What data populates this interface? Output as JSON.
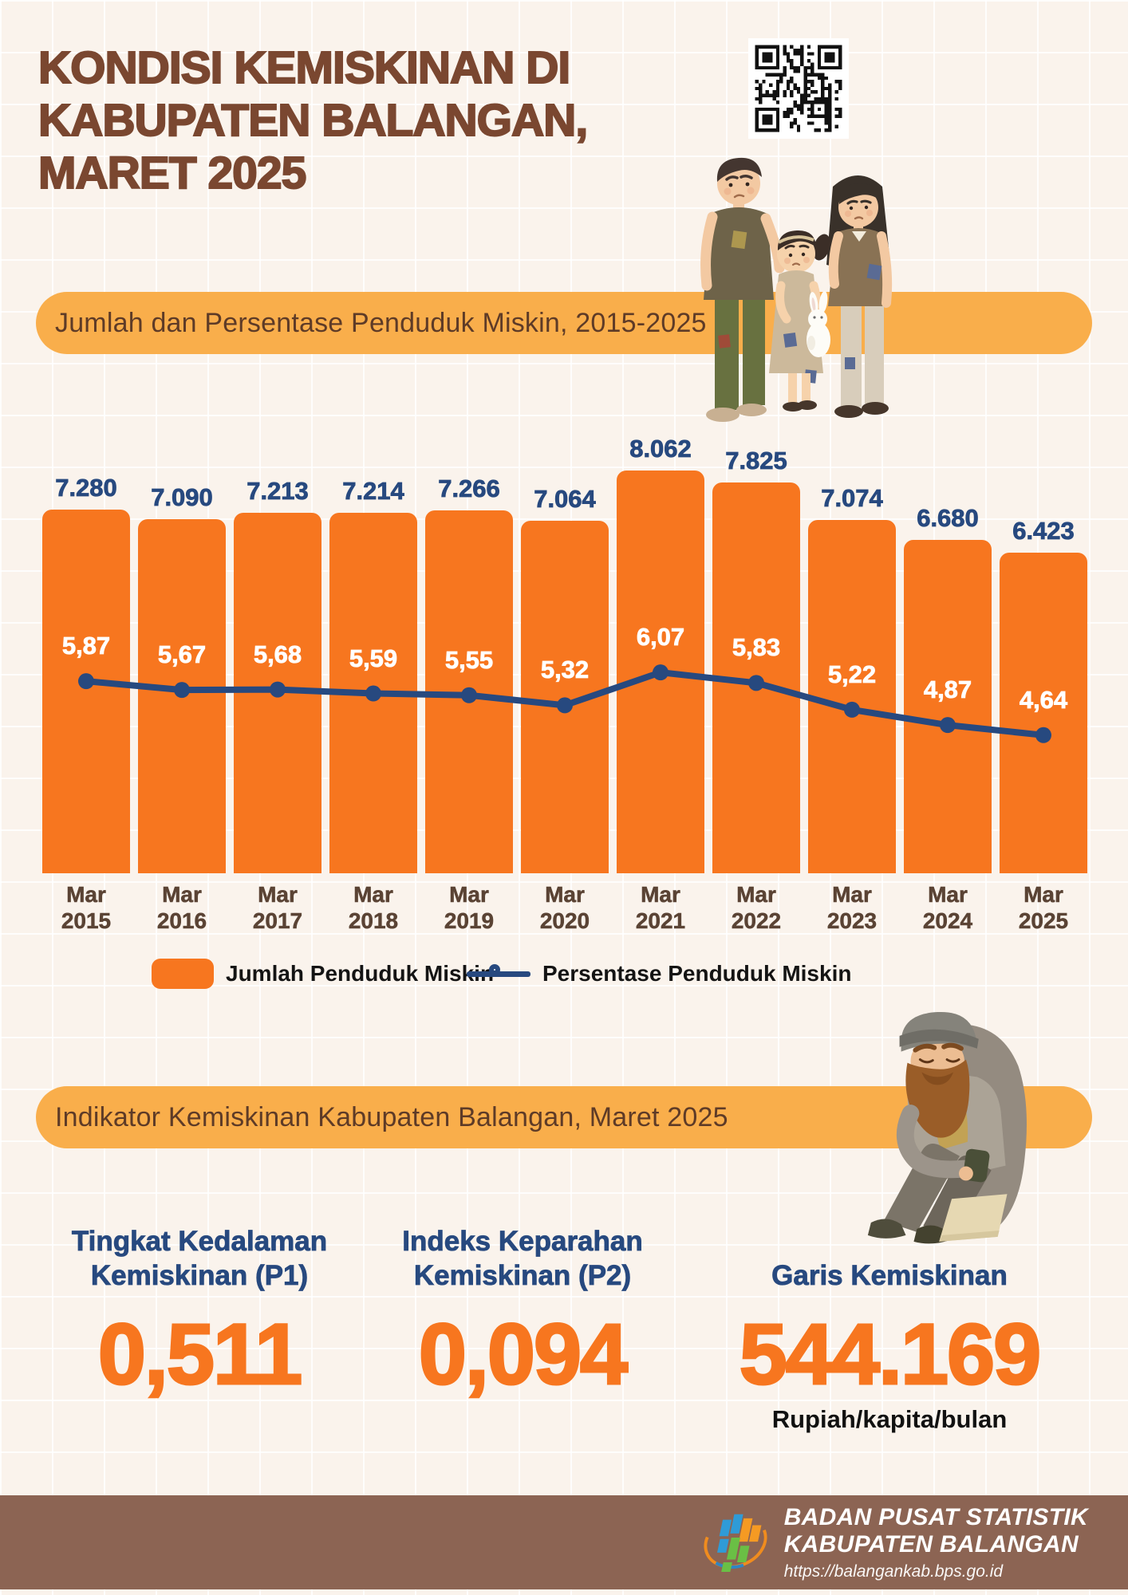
{
  "page": {
    "title_line1": "KONDISI KEMISKINAN DI",
    "title_line2": "KABUPATEN BALANGAN,",
    "title_line3": "MARET 2025"
  },
  "sections": {
    "chart_banner": "Jumlah dan Persentase Penduduk Miskin, 2015-2025",
    "indicator_banner": "Indikator Kemiskinan Kabupaten Balangan, Maret 2025"
  },
  "chart_data": {
    "type": "combo_bar_line",
    "categories": [
      "Mar 2015",
      "Mar 2016",
      "Mar 2017",
      "Mar 2018",
      "Mar 2019",
      "Mar 2020",
      "Mar 2021",
      "Mar 2022",
      "Mar 2023",
      "Mar 2024",
      "Mar 2025"
    ],
    "series": [
      {
        "name": "Jumlah Penduduk Miskin",
        "type": "bar",
        "color": "#f7761f",
        "values": [
          7280,
          7090,
          7213,
          7214,
          7266,
          7064,
          8062,
          7825,
          7074,
          6680,
          6423
        ],
        "display_labels": [
          "7.280",
          "7.090",
          "7.213",
          "7.214",
          "7.266",
          "7.064",
          "8.062",
          "7.825",
          "7.074",
          "6.680",
          "6.423"
        ]
      },
      {
        "name": "Persentase Penduduk Miskin",
        "type": "line",
        "color": "#27497f",
        "values": [
          5.87,
          5.67,
          5.68,
          5.59,
          5.55,
          5.32,
          6.07,
          5.83,
          5.22,
          4.87,
          4.64
        ],
        "display_labels": [
          "5,87",
          "5,67",
          "5,68",
          "5,59",
          "5,55",
          "5,32",
          "6,07",
          "5,83",
          "5,22",
          "4,87",
          "4,64"
        ]
      }
    ],
    "legend_position": "bottom",
    "axes_shown": false,
    "bar_ylim": [
      0,
      8500
    ],
    "line_ylim": [
      4,
      7
    ]
  },
  "indicators": {
    "p1": {
      "label_line1": "Tingkat Kedalaman",
      "label_line2": "Kemiskinan (P1)",
      "value": "0,511"
    },
    "p2": {
      "label_line1": "Indeks Keparahan",
      "label_line2": "Kemiskinan (P2)",
      "value": "0,094"
    },
    "garis": {
      "label": "Garis Kemiskinan",
      "value": "544.169",
      "unit": "Rupiah/kapita/bulan"
    }
  },
  "footer": {
    "agency_line1": "BADAN PUSAT STATISTIK",
    "agency_line2": "KABUPATEN BALANGAN",
    "website": "https://balangankab.bps.go.id"
  },
  "icons": {
    "qr": "qr-code",
    "bps_logo": "bps-logo",
    "family": "poor-family-illustration",
    "homeless": "homeless-man-illustration"
  },
  "colors": {
    "background": "#faf3ec",
    "accent_orange": "#f7761f",
    "banner_amber": "#f9ae4b",
    "title_brown": "#7a4730",
    "dark_blue": "#27497f",
    "xlabel_brown": "#5a4334",
    "footer_brown": "#8c6453"
  }
}
